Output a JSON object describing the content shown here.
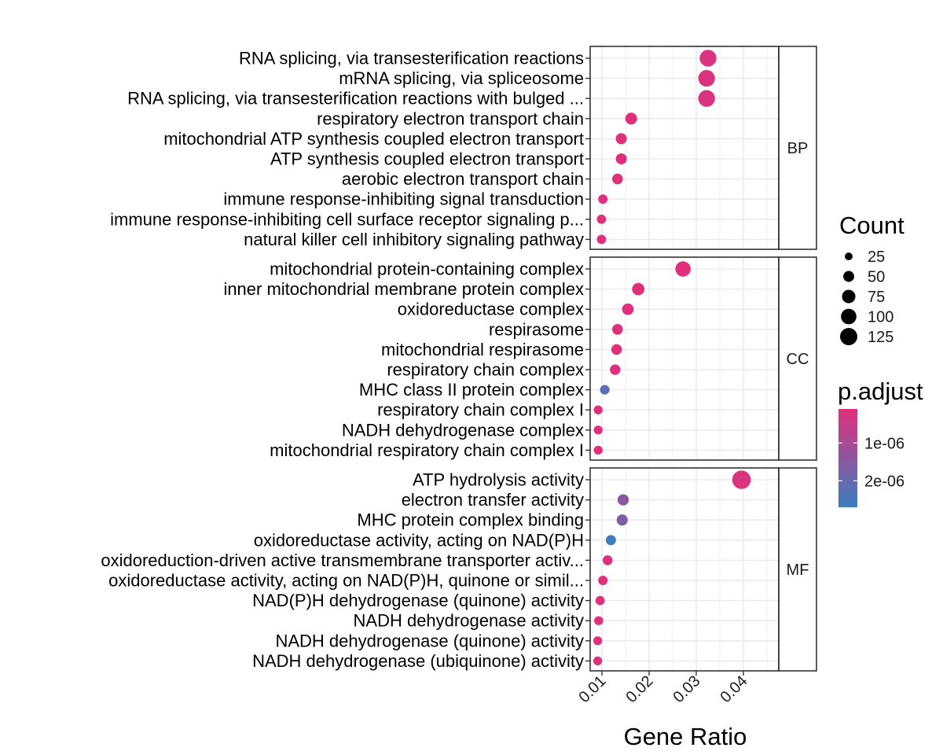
{
  "chart_data": {
    "type": "scatter",
    "kind": "faceted dot plot",
    "xlabel": "Gene Ratio",
    "xlim": [
      0.0075,
      0.0475
    ],
    "xticks": [
      0.01,
      0.02,
      0.03,
      0.04
    ],
    "xtick_labels": [
      "0.01",
      "0.02",
      "0.03",
      "0.04"
    ],
    "grid": true,
    "facets": [
      {
        "label": "BP",
        "terms": [
          {
            "term": "RNA splicing, via transesterification reactions",
            "gene_ratio": 0.0325,
            "count": 118,
            "p_adjust": 2e-07
          },
          {
            "term": "mRNA splicing, via spliceosome",
            "gene_ratio": 0.0322,
            "count": 117,
            "p_adjust": 2e-07
          },
          {
            "term": "RNA splicing, via transesterification reactions with bulged ...",
            "gene_ratio": 0.0322,
            "count": 117,
            "p_adjust": 2e-07
          },
          {
            "term": "respiratory electron transport chain",
            "gene_ratio": 0.0162,
            "count": 59,
            "p_adjust": 1e-07
          },
          {
            "term": "mitochondrial ATP synthesis coupled electron transport",
            "gene_ratio": 0.0141,
            "count": 51,
            "p_adjust": 1e-07
          },
          {
            "term": "ATP synthesis coupled electron transport",
            "gene_ratio": 0.0141,
            "count": 51,
            "p_adjust": 1e-07
          },
          {
            "term": "aerobic electron transport chain",
            "gene_ratio": 0.0133,
            "count": 48,
            "p_adjust": 1e-07
          },
          {
            "term": "immune response-inhibiting signal transduction",
            "gene_ratio": 0.0102,
            "count": 37,
            "p_adjust": 1e-07
          },
          {
            "term": "immune response-inhibiting cell surface receptor signaling p...",
            "gene_ratio": 0.0099,
            "count": 36,
            "p_adjust": 1e-07
          },
          {
            "term": "natural killer cell inhibitory signaling pathway",
            "gene_ratio": 0.0099,
            "count": 36,
            "p_adjust": 1e-07
          }
        ]
      },
      {
        "label": "CC",
        "terms": [
          {
            "term": "mitochondrial protein-containing complex",
            "gene_ratio": 0.0272,
            "count": 99,
            "p_adjust": 1e-07
          },
          {
            "term": "inner mitochondrial membrane protein complex",
            "gene_ratio": 0.0177,
            "count": 64,
            "p_adjust": 1e-07
          },
          {
            "term": "oxidoreductase complex",
            "gene_ratio": 0.0155,
            "count": 56,
            "p_adjust": 1e-07
          },
          {
            "term": "respirasome",
            "gene_ratio": 0.0133,
            "count": 48,
            "p_adjust": 1e-07
          },
          {
            "term": "mitochondrial respirasome",
            "gene_ratio": 0.0131,
            "count": 47,
            "p_adjust": 1e-07
          },
          {
            "term": "respiratory chain complex",
            "gene_ratio": 0.0128,
            "count": 46,
            "p_adjust": 1e-07
          },
          {
            "term": "MHC class II protein complex",
            "gene_ratio": 0.0106,
            "count": 38,
            "p_adjust": 2.2e-06
          },
          {
            "term": "respiratory chain complex I",
            "gene_ratio": 0.0092,
            "count": 33,
            "p_adjust": 1e-07
          },
          {
            "term": "NADH dehydrogenase complex",
            "gene_ratio": 0.0092,
            "count": 33,
            "p_adjust": 1e-07
          },
          {
            "term": "mitochondrial respiratory chain complex I",
            "gene_ratio": 0.0092,
            "count": 33,
            "p_adjust": 1e-07
          }
        ]
      },
      {
        "label": "MF",
        "terms": [
          {
            "term": "ATP hydrolysis activity",
            "gene_ratio": 0.0396,
            "count": 144,
            "p_adjust": 2e-07
          },
          {
            "term": "electron transfer activity",
            "gene_ratio": 0.0145,
            "count": 53,
            "p_adjust": 1.5e-06
          },
          {
            "term": "MHC protein complex binding",
            "gene_ratio": 0.0143,
            "count": 52,
            "p_adjust": 1.6e-06
          },
          {
            "term": "oxidoreductase activity, acting on NAD(P)H",
            "gene_ratio": 0.0119,
            "count": 43,
            "p_adjust": 2.6e-06
          },
          {
            "term": "oxidoreduction-driven active transmembrane transporter activ...",
            "gene_ratio": 0.0112,
            "count": 41,
            "p_adjust": 1e-07
          },
          {
            "term": "oxidoreductase activity, acting on NAD(P)H, quinone or simil...",
            "gene_ratio": 0.0102,
            "count": 37,
            "p_adjust": 1e-07
          },
          {
            "term": "NAD(P)H dehydrogenase (quinone) activity",
            "gene_ratio": 0.0096,
            "count": 35,
            "p_adjust": 1e-07
          },
          {
            "term": "NADH dehydrogenase activity",
            "gene_ratio": 0.0093,
            "count": 34,
            "p_adjust": 1e-07
          },
          {
            "term": "NADH dehydrogenase (quinone) activity",
            "gene_ratio": 0.0091,
            "count": 33,
            "p_adjust": 1e-07
          },
          {
            "term": "NADH dehydrogenase (ubiquinone) activity",
            "gene_ratio": 0.0091,
            "count": 33,
            "p_adjust": 1e-07
          }
        ]
      }
    ],
    "size_legend": {
      "title": "Count",
      "breaks": [
        25,
        50,
        75,
        100,
        125
      ],
      "labels": [
        "25",
        "50",
        "75",
        "100",
        "125"
      ]
    },
    "color_legend": {
      "title": "p.adjust",
      "low_color": "#E0307C",
      "high_color": "#3A7EC0",
      "range": [
        1e-07,
        2.7e-06
      ],
      "ticks": [
        1e-06,
        2e-06
      ],
      "tick_labels": [
        "1e-06",
        "2e-06"
      ]
    }
  }
}
